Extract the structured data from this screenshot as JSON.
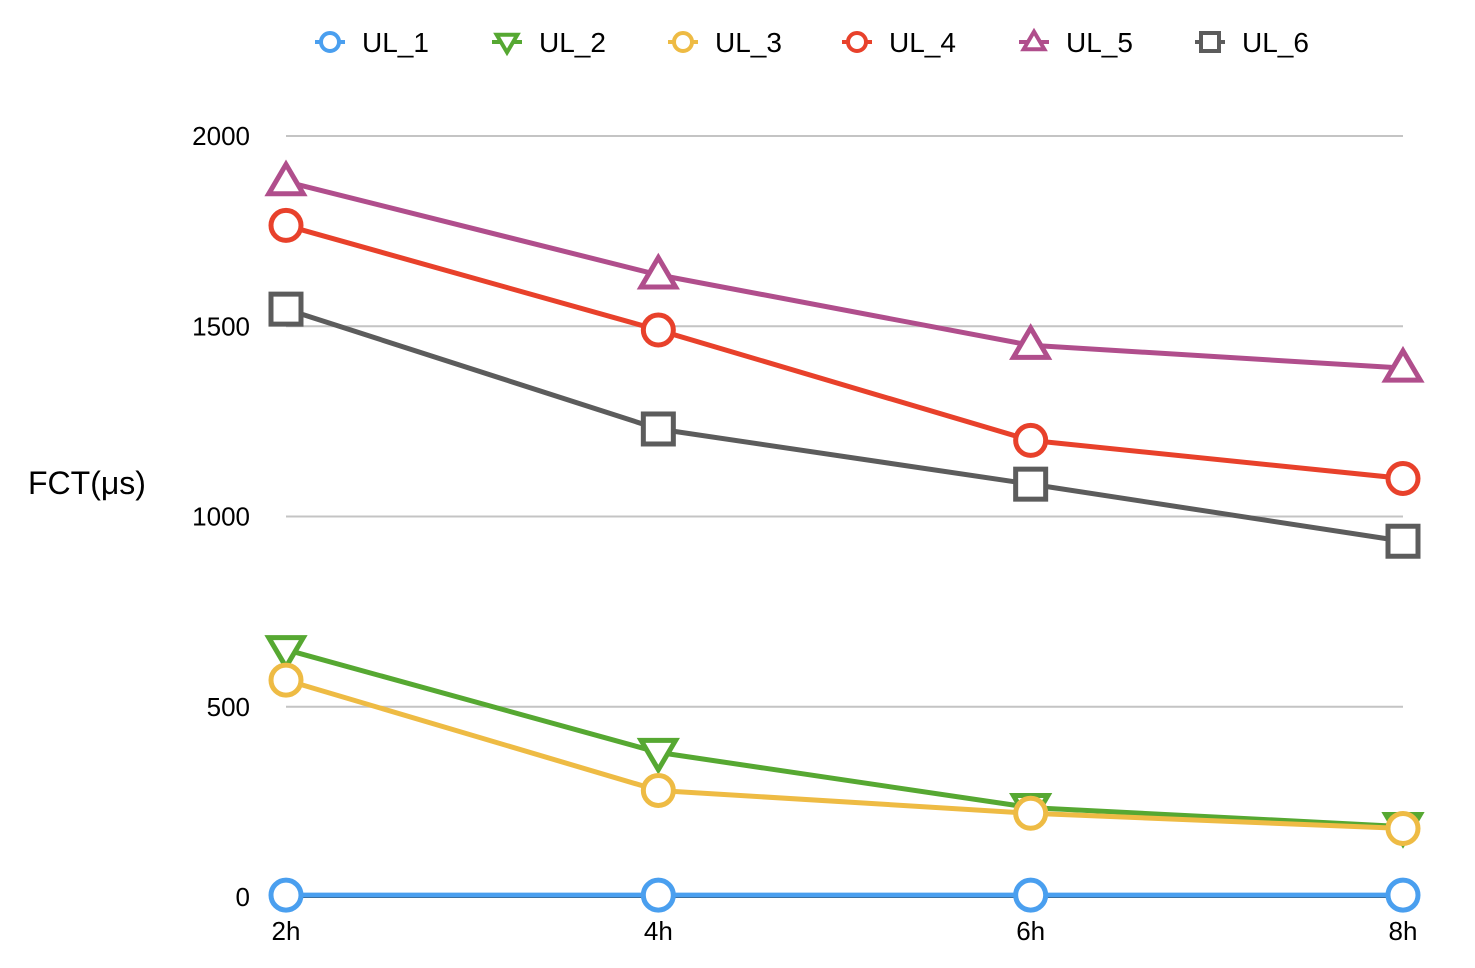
{
  "chart_data": {
    "type": "line",
    "title": "",
    "xlabel": "",
    "ylabel": "FCT(μs)",
    "categories": [
      "2h",
      "4h",
      "6h",
      "8h"
    ],
    "ylim": [
      0,
      2000
    ],
    "yticks": [
      0,
      500,
      1000,
      1500,
      2000
    ],
    "grid": true,
    "legend_position": "top",
    "series": [
      {
        "name": "UL_1",
        "color": "#4a9fef",
        "marker": "circle",
        "values": [
          5,
          5,
          5,
          5
        ]
      },
      {
        "name": "UL_2",
        "color": "#56a832",
        "marker": "triangle-down",
        "values": [
          650,
          380,
          235,
          185
        ]
      },
      {
        "name": "UL_3",
        "color": "#eebb44",
        "marker": "circle",
        "values": [
          570,
          280,
          220,
          180
        ]
      },
      {
        "name": "UL_4",
        "color": "#e8412b",
        "marker": "circle",
        "values": [
          1765,
          1490,
          1200,
          1100
        ]
      },
      {
        "name": "UL_5",
        "color": "#b04e8c",
        "marker": "triangle-up",
        "values": [
          1880,
          1635,
          1450,
          1390
        ]
      },
      {
        "name": "UL_6",
        "color": "#5c5c5c",
        "marker": "square",
        "values": [
          1545,
          1230,
          1085,
          935
        ]
      }
    ]
  }
}
